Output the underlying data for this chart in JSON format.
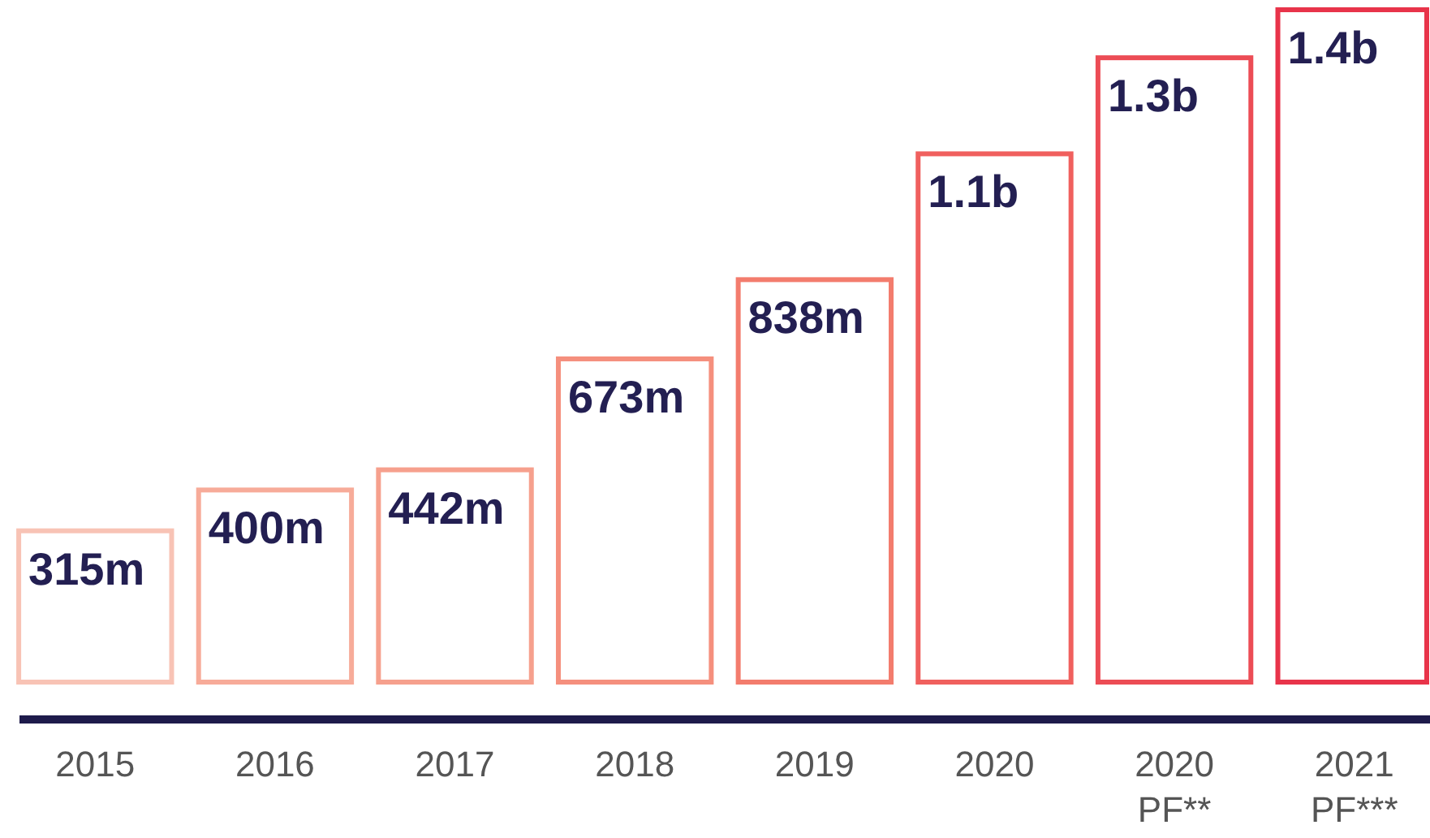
{
  "chart_data": {
    "type": "bar",
    "categories": [
      "2015",
      "2016",
      "2017",
      "2018",
      "2019",
      "2020",
      "2020 PF**",
      "2021 PF***"
    ],
    "values": [
      315000000,
      400000000,
      442000000,
      673000000,
      838000000,
      1100000000,
      1300000000,
      1400000000
    ],
    "value_labels": [
      "315m",
      "400m",
      "442m",
      "673m",
      "838m",
      "1.1b",
      "1.3b",
      "1.4b"
    ],
    "colors": [
      "#f8c3b5",
      "#f7ab99",
      "#f6a08d",
      "#f58f7d",
      "#f37c6d",
      "#f0605e",
      "#ec4c55",
      "#e8344a"
    ]
  }
}
